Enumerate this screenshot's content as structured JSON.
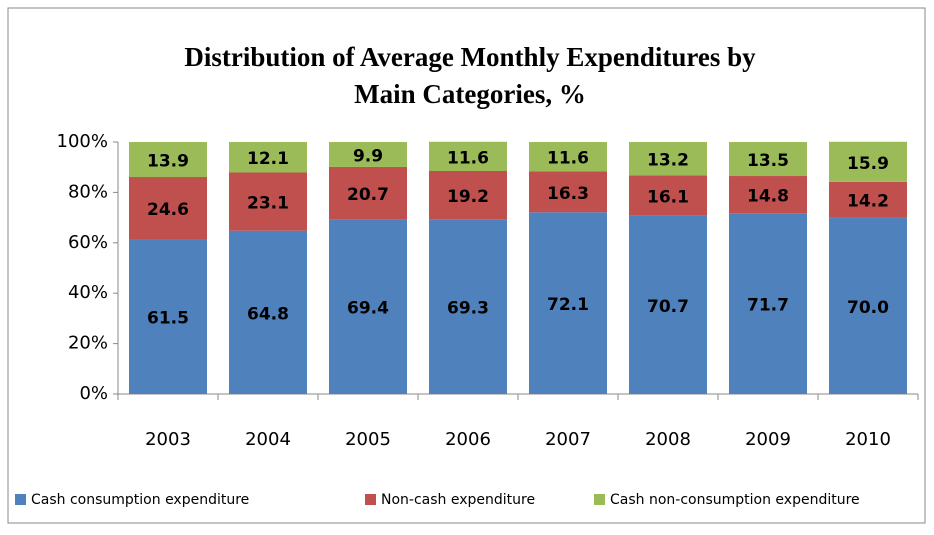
{
  "chart_data": {
    "type": "stacked_bar",
    "title": "Distribution of Average Monthly Expenditures by",
    "subtitle": "Main Categories, %",
    "categories": [
      "2003",
      "2004",
      "2005",
      "2006",
      "2007",
      "2008",
      "2009",
      "2010"
    ],
    "series": [
      {
        "name": "Cash consumption expenditure",
        "color": "#4f81bd",
        "values": [
          61.5,
          64.8,
          69.4,
          69.3,
          72.1,
          70.7,
          71.7,
          70.0
        ],
        "value_labels": [
          "61.5",
          "64.8",
          "69.4",
          "69.3",
          "72.1",
          "70.7",
          "71.7",
          "70.0"
        ]
      },
      {
        "name": "Non-cash expenditure",
        "color": "#c0504d",
        "values": [
          24.6,
          23.1,
          20.7,
          19.2,
          16.3,
          16.1,
          14.8,
          14.2
        ]
      },
      {
        "name": "Cash non-consumption expenditure",
        "color": "#9bbb59",
        "values": [
          13.9,
          12.1,
          9.9,
          11.6,
          11.6,
          13.2,
          13.5,
          15.9
        ]
      }
    ],
    "ylim": [
      0,
      100
    ],
    "yticks": [
      {
        "value": 0,
        "label": "0%"
      },
      {
        "value": 20,
        "label": "20%"
      },
      {
        "value": 40,
        "label": "40%"
      },
      {
        "value": 60,
        "label": "60%"
      },
      {
        "value": 80,
        "label": "80%"
      },
      {
        "value": 100,
        "label": "100%"
      }
    ],
    "legend": "bottom"
  }
}
